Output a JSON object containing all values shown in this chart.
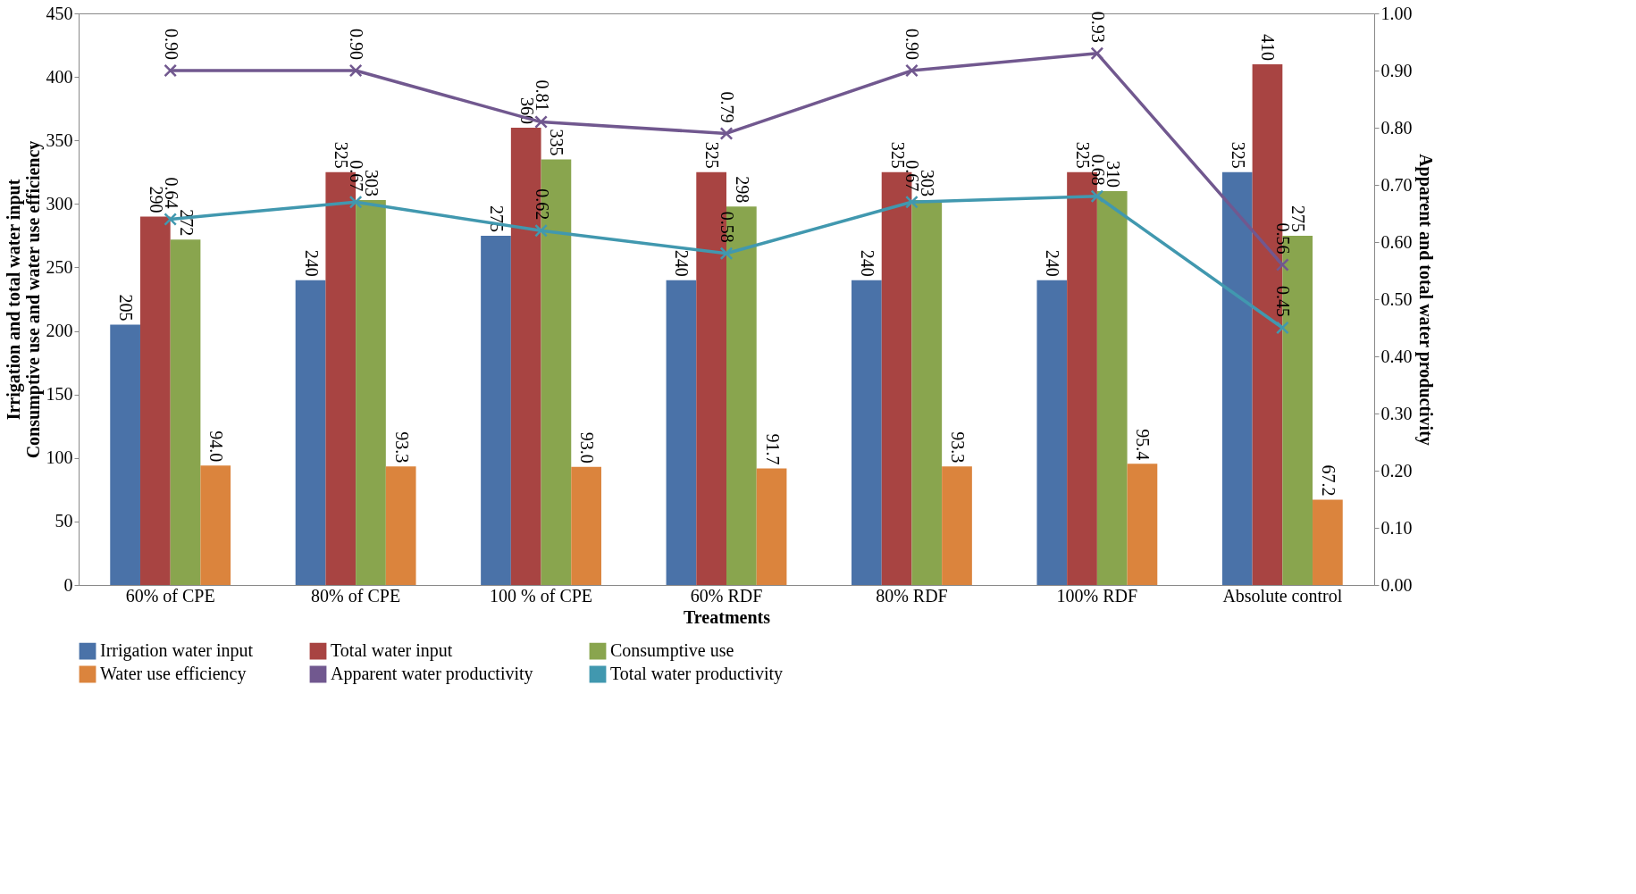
{
  "chart_data": {
    "type": "bar",
    "xlabel": "Treatments",
    "ylabel": "Irrigation and total water input\nConsumptive use and water use efficiency",
    "y2label": "Apparent and total water productivity",
    "categories": [
      "60% of CPE",
      "80% of CPE",
      "100 % of CPE",
      "60% RDF",
      "80% RDF",
      "100% RDF",
      "Absolute control"
    ],
    "series": [
      {
        "name": "Irrigation water input",
        "color": "#4a72a8",
        "values": [
          205,
          240,
          275,
          240,
          240,
          240,
          325
        ],
        "value_labels": [
          "205",
          "240",
          "275",
          "240",
          "240",
          "240",
          "325"
        ]
      },
      {
        "name": "Total water input",
        "color": "#a84442",
        "values": [
          290,
          325,
          360,
          325,
          325,
          325,
          410
        ],
        "value_labels": [
          "290",
          "325",
          "360",
          "325",
          "325",
          "325",
          "410"
        ]
      },
      {
        "name": "Consumptive use",
        "color": "#89a54e",
        "values": [
          272,
          303,
          335,
          298,
          303,
          310,
          275
        ],
        "value_labels": [
          "272",
          "303",
          "335",
          "298",
          "303",
          "310",
          "275"
        ]
      },
      {
        "name": "Water use efficiency",
        "color": "#db843d",
        "values": [
          94.0,
          93.3,
          93.0,
          91.7,
          93.3,
          95.4,
          67.2
        ],
        "value_labels": [
          "94.0",
          "93.3",
          "93.0",
          "91.7",
          "93.3",
          "95.4",
          "67.2"
        ]
      },
      {
        "name": "Apparent water productivity",
        "type": "line",
        "axis": "y2",
        "marker": "cross",
        "color": "#71588f",
        "values": [
          0.9,
          0.9,
          0.81,
          0.79,
          0.9,
          0.93,
          0.56
        ],
        "value_labels": [
          "0.90",
          "0.90",
          "0.81",
          "0.79",
          "0.90",
          "0.93",
          "0.56"
        ]
      },
      {
        "name": "Total water productivity",
        "type": "line",
        "axis": "y2",
        "marker": "cross",
        "color": "#4198af",
        "values": [
          0.64,
          0.67,
          0.62,
          0.58,
          0.67,
          0.68,
          0.45
        ],
        "value_labels": [
          "0.64",
          "0.67",
          "0.62",
          "0.58",
          "0.67",
          "0.68",
          "0.45"
        ]
      }
    ],
    "ylim": [
      0,
      450
    ],
    "yticks": [
      0,
      50,
      100,
      150,
      200,
      250,
      300,
      350,
      400,
      450
    ],
    "y2lim": [
      0,
      1
    ],
    "y2ticks": [
      {
        "value": 0,
        "label": "0.00"
      },
      {
        "value": 0.1,
        "label": "0.10"
      },
      {
        "value": 0.2,
        "label": "0.20"
      },
      {
        "value": 0.3,
        "label": "0.30"
      },
      {
        "value": 0.4,
        "label": "0.40"
      },
      {
        "value": 0.5,
        "label": "0.50"
      },
      {
        "value": 0.6,
        "label": "0.60"
      },
      {
        "value": 0.7,
        "label": "0.70"
      },
      {
        "value": 0.8,
        "label": "0.80"
      },
      {
        "value": 0.9,
        "label": "0.90"
      },
      {
        "value": 1,
        "label": "1.00"
      }
    ],
    "grid": false,
    "legend": "bottom"
  }
}
